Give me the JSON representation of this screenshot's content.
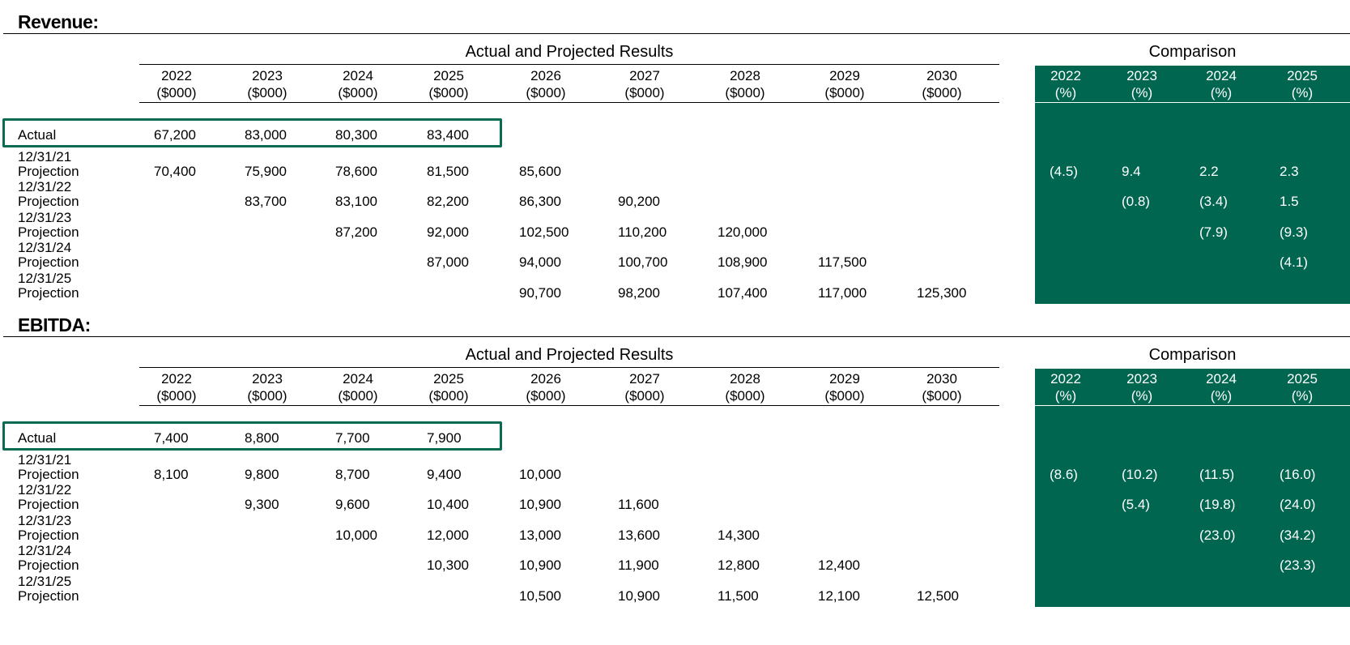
{
  "sections": [
    {
      "title": "Revenue:",
      "group_title": "Actual and Projected Results",
      "comparison_title": "Comparison",
      "columns": [
        {
          "year": "2022",
          "unit": "($000)"
        },
        {
          "year": "2023",
          "unit": "($000)"
        },
        {
          "year": "2024",
          "unit": "($000)"
        },
        {
          "year": "2025",
          "unit": "($000)"
        },
        {
          "year": "2026",
          "unit": "($000)"
        },
        {
          "year": "2027",
          "unit": "($000)"
        },
        {
          "year": "2028",
          "unit": "($000)"
        },
        {
          "year": "2029",
          "unit": "($000)"
        },
        {
          "year": "2030",
          "unit": "($000)"
        }
      ],
      "comparison_columns": [
        {
          "year": "2022",
          "unit": "(%)"
        },
        {
          "year": "2023",
          "unit": "(%)"
        },
        {
          "year": "2024",
          "unit": "(%)"
        },
        {
          "year": "2025",
          "unit": "(%)"
        }
      ],
      "rows": [
        {
          "date": "",
          "label": "Actual",
          "values": [
            "67,200",
            "83,000",
            "80,300",
            "83,400",
            "",
            "",
            "",
            "",
            ""
          ],
          "comparison": [
            "",
            "",
            "",
            ""
          ]
        },
        {
          "date": "12/31/21",
          "label": "Projection",
          "values": [
            "70,400",
            "75,900",
            "78,600",
            "81,500",
            "85,600",
            "",
            "",
            "",
            ""
          ],
          "comparison": [
            "(4.5)",
            "9.4",
            "2.2",
            "2.3"
          ]
        },
        {
          "date": "12/31/22",
          "label": "Projection",
          "values": [
            "",
            "83,700",
            "83,100",
            "82,200",
            "86,300",
            "90,200",
            "",
            "",
            ""
          ],
          "comparison": [
            "",
            "(0.8)",
            "(3.4)",
            "1.5"
          ]
        },
        {
          "date": "12/31/23",
          "label": "Projection",
          "values": [
            "",
            "",
            "87,200",
            "92,000",
            "102,500",
            "110,200",
            "120,000",
            "",
            ""
          ],
          "comparison": [
            "",
            "",
            "(7.9)",
            "(9.3)"
          ]
        },
        {
          "date": "12/31/24",
          "label": "Projection",
          "values": [
            "",
            "",
            "",
            "87,000",
            "94,000",
            "100,700",
            "108,900",
            "117,500",
            ""
          ],
          "comparison": [
            "",
            "",
            "",
            "(4.1)"
          ]
        },
        {
          "date": "12/31/25",
          "label": "Projection",
          "values": [
            "",
            "",
            "",
            "",
            "90,700",
            "98,200",
            "107,400",
            "117,000",
            "125,300"
          ],
          "comparison": [
            "",
            "",
            "",
            ""
          ]
        }
      ]
    },
    {
      "title": "EBITDA:",
      "group_title": "Actual and Projected Results",
      "comparison_title": "Comparison",
      "columns": [
        {
          "year": "2022",
          "unit": "($000)"
        },
        {
          "year": "2023",
          "unit": "($000)"
        },
        {
          "year": "2024",
          "unit": "($000)"
        },
        {
          "year": "2025",
          "unit": "($000)"
        },
        {
          "year": "2026",
          "unit": "($000)"
        },
        {
          "year": "2027",
          "unit": "($000)"
        },
        {
          "year": "2028",
          "unit": "($000)"
        },
        {
          "year": "2029",
          "unit": "($000)"
        },
        {
          "year": "2030",
          "unit": "($000)"
        }
      ],
      "comparison_columns": [
        {
          "year": "2022",
          "unit": "(%)"
        },
        {
          "year": "2023",
          "unit": "(%)"
        },
        {
          "year": "2024",
          "unit": "(%)"
        },
        {
          "year": "2025",
          "unit": "(%)"
        }
      ],
      "rows": [
        {
          "date": "",
          "label": "Actual",
          "values": [
            "7,400",
            "8,800",
            "7,700",
            "7,900",
            "",
            "",
            "",
            "",
            ""
          ],
          "comparison": [
            "",
            "",
            "",
            ""
          ]
        },
        {
          "date": "12/31/21",
          "label": "Projection",
          "values": [
            "8,100",
            "9,800",
            "8,700",
            "9,400",
            "10,000",
            "",
            "",
            "",
            ""
          ],
          "comparison": [
            "(8.6)",
            "(10.2)",
            "(11.5)",
            "(16.0)"
          ]
        },
        {
          "date": "12/31/22",
          "label": "Projection",
          "values": [
            "",
            "9,300",
            "9,600",
            "10,400",
            "10,900",
            "11,600",
            "",
            "",
            ""
          ],
          "comparison": [
            "",
            "(5.4)",
            "(19.8)",
            "(24.0)"
          ]
        },
        {
          "date": "12/31/23",
          "label": "Projection",
          "values": [
            "",
            "",
            "10,000",
            "12,000",
            "13,000",
            "13,600",
            "14,300",
            "",
            ""
          ],
          "comparison": [
            "",
            "",
            "(23.0)",
            "(34.2)"
          ]
        },
        {
          "date": "12/31/24",
          "label": "Projection",
          "values": [
            "",
            "",
            "",
            "10,300",
            "10,900",
            "11,900",
            "12,800",
            "12,400",
            ""
          ],
          "comparison": [
            "",
            "",
            "",
            "(23.3)"
          ]
        },
        {
          "date": "12/31/25",
          "label": "Projection",
          "values": [
            "",
            "",
            "",
            "",
            "10,500",
            "10,900",
            "11,500",
            "12,100",
            "12,500"
          ],
          "comparison": [
            "",
            "",
            "",
            ""
          ]
        }
      ]
    }
  ],
  "colors": {
    "comparison_panel": "#006650",
    "actual_highlight": "#0b6a52"
  }
}
